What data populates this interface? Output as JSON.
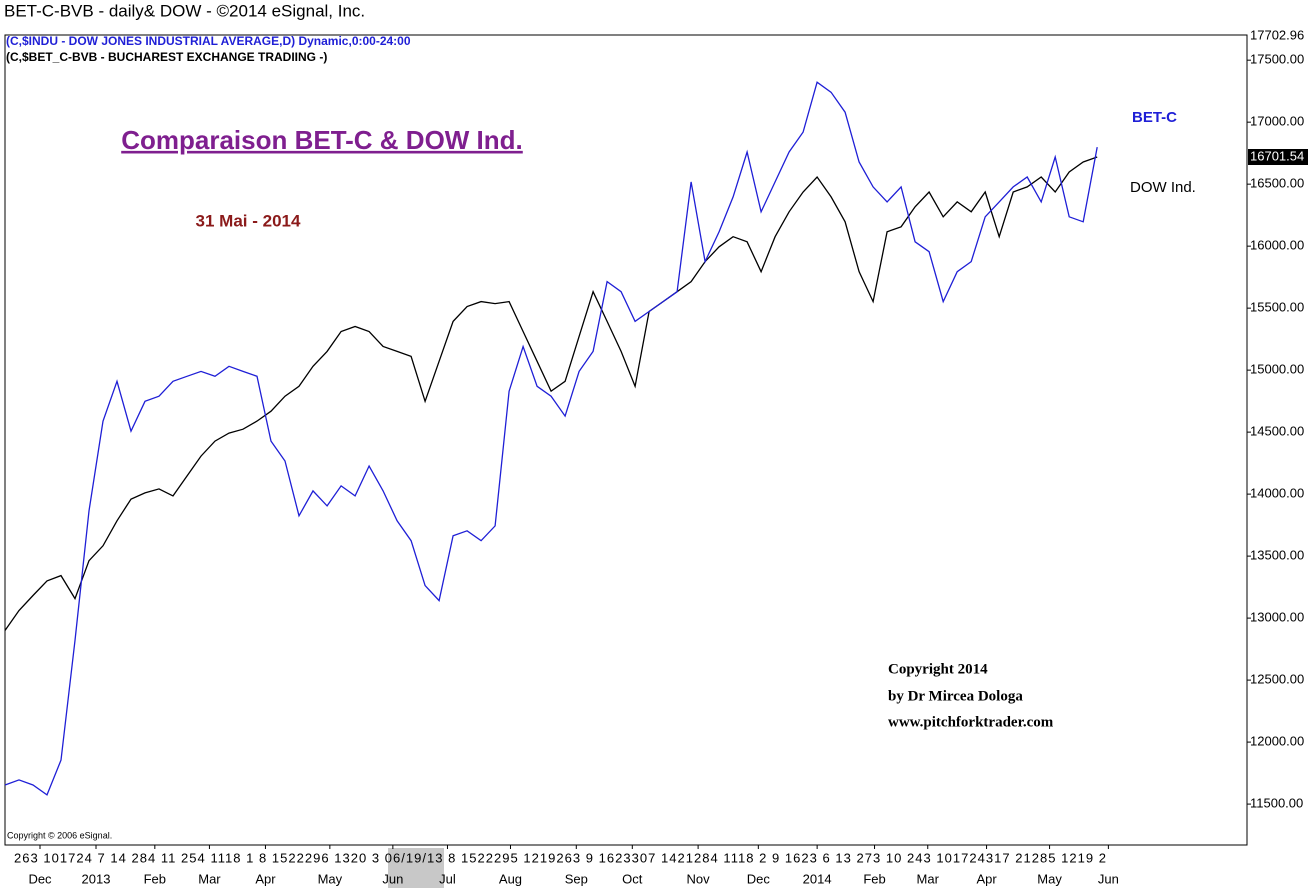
{
  "chart_data": {
    "type": "line",
    "header": "BET-C-BVB - daily& DOW - ©2014 eSignal, Inc.",
    "legend_lines": [
      "(C,$INDU - DOW JONES INDUSTRIAL AVERAGE,D) Dynamic,0:00-24:00",
      "(C,$BET_C-BVB - BUCHAREST EXCHANGE TRADIING -)"
    ],
    "title": "Comparaison BET-C & DOW Ind.",
    "subtitle": "31 Mai - 2014",
    "copyright": [
      "Copyright 2014",
      "by Dr Mircea Dologa",
      "www.pitchforktrader.com"
    ],
    "source_note": "Copyright © 2006 eSignal.",
    "top_label": "17702.96",
    "last_label": "16701.54",
    "x_day_labels": "263 101724 7 14 284 11 254 1118 1 8 1522296 1320 3 06/19/13 8 1522295 1219263 9 1623307 1421284 1118 2 9 1623 6 13 273 10 243 101724317 21285 1219 2",
    "xlim": [
      0,
      88.7
    ],
    "xticks": [
      {
        "value": 2.5,
        "label": "Dec"
      },
      {
        "value": 6.5,
        "label": "2013"
      },
      {
        "value": 10.7,
        "label": "Feb"
      },
      {
        "value": 14.6,
        "label": "Mar"
      },
      {
        "value": 18.6,
        "label": "Apr"
      },
      {
        "value": 23.2,
        "label": "May"
      },
      {
        "value": 27.7,
        "label": "Jun"
      },
      {
        "value": 31.6,
        "label": "Jul"
      },
      {
        "value": 36.1,
        "label": "Aug"
      },
      {
        "value": 40.8,
        "label": "Sep"
      },
      {
        "value": 44.8,
        "label": "Oct"
      },
      {
        "value": 49.5,
        "label": "Nov"
      },
      {
        "value": 53.8,
        "label": "Dec"
      },
      {
        "value": 58,
        "label": "2014"
      },
      {
        "value": 62.1,
        "label": "Feb"
      },
      {
        "value": 65.9,
        "label": "Mar"
      },
      {
        "value": 70.1,
        "label": "Apr"
      },
      {
        "value": 74.6,
        "label": "May"
      },
      {
        "value": 78.8,
        "label": "Jun"
      }
    ],
    "ylim": [
      11170,
      17703
    ],
    "yticks": [
      {
        "value": 11500,
        "label": "11500.00"
      },
      {
        "value": 12000,
        "label": "12000.00"
      },
      {
        "value": 12500,
        "label": "12500.00"
      },
      {
        "value": 13000,
        "label": "13000.00"
      },
      {
        "value": 13500,
        "label": "13500.00"
      },
      {
        "value": 14000,
        "label": "14000.00"
      },
      {
        "value": 14500,
        "label": "14500.00"
      },
      {
        "value": 15000,
        "label": "15000.00"
      },
      {
        "value": 15500,
        "label": "15500.00"
      },
      {
        "value": 16000,
        "label": "16000.00"
      },
      {
        "value": 16500,
        "label": "16500.00"
      },
      {
        "value": 17000,
        "label": "17000.00"
      },
      {
        "value": 17500,
        "label": "17500.00"
      }
    ],
    "series": [
      {
        "name": "DOW Ind.",
        "color": "#000000",
        "values": [
          12900,
          13061,
          13182,
          13300,
          13343,
          13157,
          13463,
          13583,
          13785,
          13960,
          14010,
          14042,
          13986,
          14146,
          14307,
          14428,
          14492,
          14524,
          14589,
          14669,
          14790,
          14870,
          15031,
          15151,
          15312,
          15352,
          15312,
          15191,
          15151,
          15111,
          14749,
          15071,
          15393,
          15513,
          15553,
          15537,
          15553,
          15312,
          15071,
          14830,
          14910,
          15272,
          15633,
          15393,
          15151,
          14870,
          15473,
          15553,
          15633,
          15714,
          15875,
          15995,
          16076,
          16035,
          15794,
          16076,
          16277,
          16437,
          16558,
          16397,
          16196,
          15794,
          15553,
          16116,
          16156,
          16317,
          16437,
          16237,
          16357,
          16277,
          16437,
          16076,
          16437,
          16478,
          16558,
          16437,
          16598,
          16679,
          16719
        ]
      },
      {
        "name": "BET-C",
        "color": "#1f1fd6",
        "values": [
          11654,
          11695,
          11654,
          11574,
          11855,
          12820,
          13865,
          14589,
          14910,
          14508,
          14749,
          14790,
          14910,
          14950,
          14990,
          14950,
          15031,
          14990,
          14950,
          14428,
          14267,
          13825,
          14026,
          13905,
          14066,
          13986,
          14227,
          14026,
          13785,
          13624,
          13262,
          13141,
          13664,
          13704,
          13624,
          13744,
          14830,
          15191,
          14870,
          14790,
          14629,
          14990,
          15151,
          15714,
          15633,
          15393,
          15473,
          15553,
          15633,
          16518,
          15875,
          16116,
          16397,
          16759,
          16277,
          16518,
          16759,
          16920,
          17322,
          17241,
          17080,
          16679,
          16478,
          16357,
          16478,
          16035,
          15955,
          15553,
          15794,
          15875,
          16237,
          16357,
          16478,
          16558,
          16357,
          16719,
          16237,
          16196,
          16799
        ]
      }
    ]
  }
}
